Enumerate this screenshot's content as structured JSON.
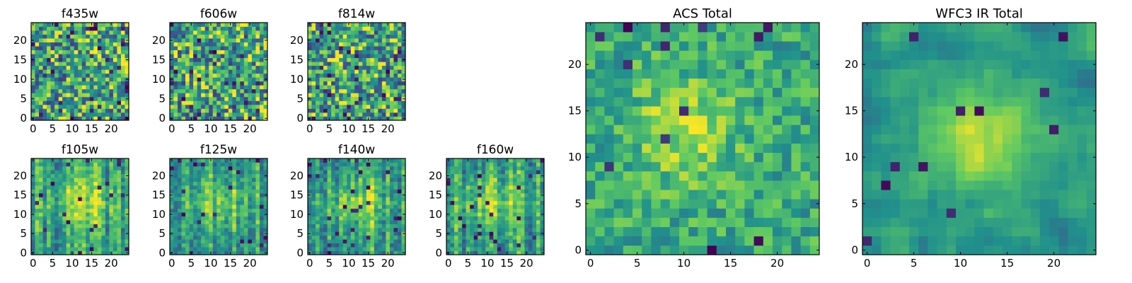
{
  "chart_data": [
    {
      "type": "heatmap",
      "title": "f435w",
      "size": 25,
      "xticks": [
        0,
        5,
        10,
        15,
        20
      ],
      "yticks": [
        0,
        5,
        10,
        15,
        20
      ],
      "seed": 11,
      "style": "noise"
    },
    {
      "type": "heatmap",
      "title": "f606w",
      "size": 25,
      "xticks": [
        0,
        5,
        10,
        15,
        20
      ],
      "yticks": [
        0,
        5,
        10,
        15,
        20
      ],
      "seed": 23,
      "style": "noise"
    },
    {
      "type": "heatmap",
      "title": "f814w",
      "size": 25,
      "xticks": [
        0,
        5,
        10,
        15,
        20
      ],
      "yticks": [
        0,
        5,
        10,
        15,
        20
      ],
      "seed": 37,
      "style": "noise"
    },
    {
      "type": "heatmap",
      "title": "f105w",
      "size": 25,
      "xticks": [
        0,
        5,
        10,
        15,
        20
      ],
      "yticks": [
        0,
        5,
        10,
        15,
        20
      ],
      "seed": 41,
      "style": "ir"
    },
    {
      "type": "heatmap",
      "title": "f125w",
      "size": 25,
      "xticks": [
        0,
        5,
        10,
        15,
        20
      ],
      "yticks": [
        0,
        5,
        10,
        15,
        20
      ],
      "seed": 53,
      "style": "ir"
    },
    {
      "type": "heatmap",
      "title": "f140w",
      "size": 25,
      "xticks": [
        0,
        5,
        10,
        15,
        20
      ],
      "yticks": [
        0,
        5,
        10,
        15,
        20
      ],
      "seed": 67,
      "style": "ir"
    },
    {
      "type": "heatmap",
      "title": "f160w",
      "size": 25,
      "xticks": [
        0,
        5,
        10,
        15,
        20
      ],
      "yticks": [
        0,
        5,
        10,
        15,
        20
      ],
      "seed": 79,
      "style": "ir"
    },
    {
      "type": "heatmap",
      "title": "ACS Total",
      "size": 25,
      "xticks": [
        0,
        5,
        10,
        15,
        20
      ],
      "yticks": [
        0,
        5,
        10,
        15,
        20
      ],
      "seed": 97,
      "style": "total"
    },
    {
      "type": "heatmap",
      "title": "WFC3 IR Total",
      "size": 25,
      "xticks": [
        0,
        5,
        10,
        15,
        20
      ],
      "yticks": [
        0,
        5,
        10,
        15,
        20
      ],
      "seed": 113,
      "style": "total_ir"
    }
  ],
  "colormap": [
    "#440154",
    "#3b528b",
    "#21918c",
    "#5ec962",
    "#fde725"
  ]
}
